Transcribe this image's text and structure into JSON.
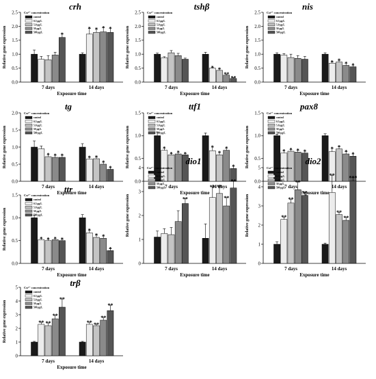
{
  "figure": {
    "legend_title": "Cu²⁺ concentration",
    "legend_labels": [
      "control",
      "0.5 μg/L",
      "5.0 μg/L",
      "50 μg/L",
      "500 μg/L"
    ],
    "series_colors": [
      "#1a1a1a",
      "#ececec",
      "#c4c4c4",
      "#8a8a8a",
      "#555555"
    ]
  },
  "chart_data": [
    {
      "type": "bar",
      "title": "crh",
      "categories": [
        "7 days",
        "14 days"
      ],
      "xlabel": "Exposure time",
      "ylabel": "Relative gene expression",
      "ylim": [
        0,
        2.5
      ],
      "yticks": [
        "0.0",
        "0.5",
        "1.0",
        "1.5",
        "2.0",
        "2.5"
      ],
      "series": [
        {
          "name": "control",
          "values": [
            1.0,
            1.0
          ],
          "errors": [
            0.15,
            0.05
          ],
          "sig": [
            "",
            ""
          ]
        },
        {
          "name": "0.5 μg/L",
          "values": [
            0.82,
            1.72
          ],
          "errors": [
            0.1,
            0.2
          ],
          "sig": [
            "",
            "*"
          ]
        },
        {
          "name": "5.0 μg/L",
          "values": [
            0.8,
            1.78
          ],
          "errors": [
            0.15,
            0.12
          ],
          "sig": [
            "",
            "*"
          ]
        },
        {
          "name": "50 μg/L",
          "values": [
            0.97,
            1.8
          ],
          "errors": [
            0.1,
            0.15
          ],
          "sig": [
            "",
            "*"
          ]
        },
        {
          "name": "500 μg/L",
          "values": [
            1.6,
            1.78
          ],
          "errors": [
            0.12,
            0.15
          ],
          "sig": [
            "*",
            "*"
          ]
        }
      ]
    },
    {
      "type": "bar",
      "title": "tshβ",
      "categories": [
        "7 days",
        "14 days"
      ],
      "xlabel": "Exposure time",
      "ylabel": "Relative gene expression",
      "ylim": [
        0,
        2.5
      ],
      "yticks": [
        "0.0",
        "0.5",
        "1.0",
        "1.5",
        "2.0",
        "2.5"
      ],
      "series": [
        {
          "name": "control",
          "values": [
            1.0,
            1.0
          ],
          "errors": [
            0.04,
            0.07
          ],
          "sig": [
            "",
            ""
          ]
        },
        {
          "name": "0.5 μg/L",
          "values": [
            0.87,
            0.5
          ],
          "errors": [
            0.04,
            0.03
          ],
          "sig": [
            "",
            "*"
          ]
        },
        {
          "name": "5.0 μg/L",
          "values": [
            1.05,
            0.42
          ],
          "errors": [
            0.08,
            0.05
          ],
          "sig": [
            "",
            "*"
          ]
        },
        {
          "name": "50 μg/L",
          "values": [
            0.95,
            0.25
          ],
          "errors": [
            0.08,
            0.04
          ],
          "sig": [
            "",
            "**"
          ]
        },
        {
          "name": "500 μg/L",
          "values": [
            0.82,
            0.13
          ],
          "errors": [
            0.04,
            0.03
          ],
          "sig": [
            "",
            "**"
          ]
        }
      ]
    },
    {
      "type": "bar",
      "title": "nis",
      "categories": [
        "7 days",
        "14 days"
      ],
      "xlabel": "Exposure time",
      "ylabel": "Relative gene expression",
      "ylim": [
        0,
        2.5
      ],
      "yticks": [
        "0.0",
        "0.5",
        "1.0",
        "1.5",
        "2.0",
        "2.5"
      ],
      "series": [
        {
          "name": "control",
          "values": [
            1.0,
            1.0
          ],
          "errors": [
            0.05,
            0.05
          ],
          "sig": [
            "",
            ""
          ]
        },
        {
          "name": "0.5 μg/L",
          "values": [
            0.97,
            0.68
          ],
          "errors": [
            0.05,
            0.04
          ],
          "sig": [
            "",
            "*"
          ]
        },
        {
          "name": "5.0 μg/L",
          "values": [
            0.88,
            0.72
          ],
          "errors": [
            0.12,
            0.06
          ],
          "sig": [
            "",
            "*"
          ]
        },
        {
          "name": "50 μg/L",
          "values": [
            0.85,
            0.6
          ],
          "errors": [
            0.1,
            0.08
          ],
          "sig": [
            "",
            "*"
          ]
        },
        {
          "name": "500 μg/L",
          "values": [
            0.82,
            0.55
          ],
          "errors": [
            0.1,
            0.06
          ],
          "sig": [
            "",
            "*"
          ]
        }
      ]
    },
    {
      "type": "bar",
      "title": "tg",
      "categories": [
        "7 days",
        "14 days"
      ],
      "xlabel": "Exposure time",
      "ylabel": "Relative gene expression",
      "ylim": [
        0,
        2.0
      ],
      "yticks": [
        "0.0",
        "0.5",
        "1.0",
        "1.5",
        "2.0"
      ],
      "series": [
        {
          "name": "control",
          "values": [
            1.0,
            1.0
          ],
          "errors": [
            0.18,
            0.1
          ],
          "sig": [
            "",
            ""
          ]
        },
        {
          "name": "0.5 μg/L",
          "values": [
            0.95,
            0.65
          ],
          "errors": [
            0.08,
            0.05
          ],
          "sig": [
            "",
            "*"
          ]
        },
        {
          "name": "5.0 μg/L",
          "values": [
            0.72,
            0.66
          ],
          "errors": [
            0.06,
            0.05
          ],
          "sig": [
            "*",
            "*"
          ]
        },
        {
          "name": "50 μg/L",
          "values": [
            0.7,
            0.5
          ],
          "errors": [
            0.06,
            0.06
          ],
          "sig": [
            "*",
            "*"
          ]
        },
        {
          "name": "500 μg/L",
          "values": [
            0.7,
            0.35
          ],
          "errors": [
            0.06,
            0.05
          ],
          "sig": [
            "*",
            "*"
          ]
        }
      ]
    },
    {
      "type": "bar",
      "title": "ttf1",
      "categories": [
        "7 days",
        "14 days"
      ],
      "xlabel": "Exposure time",
      "ylabel": "Relative gene expression",
      "ylim": [
        0,
        1.5
      ],
      "yticks": [
        "0.0",
        "0.5",
        "1.0",
        "1.5"
      ],
      "series": [
        {
          "name": "control",
          "values": [
            1.0,
            1.0
          ],
          "errors": [
            0.08,
            0.06
          ],
          "sig": [
            "",
            ""
          ]
        },
        {
          "name": "0.5 μg/L",
          "values": [
            0.68,
            0.67
          ],
          "errors": [
            0.05,
            0.08
          ],
          "sig": [
            "*",
            "*"
          ]
        },
        {
          "name": "5.0 μg/L",
          "values": [
            0.58,
            0.58
          ],
          "errors": [
            0.03,
            0.05
          ],
          "sig": [
            "*",
            "*"
          ]
        },
        {
          "name": "50 μg/L",
          "values": [
            0.6,
            0.68
          ],
          "errors": [
            0.04,
            0.05
          ],
          "sig": [
            "*",
            "*"
          ]
        },
        {
          "name": "500 μg/L",
          "values": [
            0.58,
            0.28
          ],
          "errors": [
            0.03,
            0.05
          ],
          "sig": [
            "*",
            "*"
          ]
        }
      ]
    },
    {
      "type": "bar",
      "title": "pax8",
      "categories": [
        "7 days",
        "14 days"
      ],
      "xlabel": "Exposure time",
      "ylabel": "Relative gene expression",
      "ylim": [
        0,
        1.5
      ],
      "yticks": [
        "0.0",
        "0.5",
        "1.0",
        "1.5"
      ],
      "series": [
        {
          "name": "control",
          "values": [
            1.0,
            1.0
          ],
          "errors": [
            0.03,
            0.04
          ],
          "sig": [
            "",
            ""
          ]
        },
        {
          "name": "0.5 μg/L",
          "values": [
            0.62,
            0.65
          ],
          "errors": [
            0.05,
            0.07
          ],
          "sig": [
            "*",
            "*"
          ]
        },
        {
          "name": "5.0 μg/L",
          "values": [
            0.66,
            0.71
          ],
          "errors": [
            0.04,
            0.05
          ],
          "sig": [
            "*",
            "*"
          ]
        },
        {
          "name": "50 μg/L",
          "values": [
            0.64,
            0.6
          ],
          "errors": [
            0.04,
            0.05
          ],
          "sig": [
            "*",
            "*"
          ]
        },
        {
          "name": "500 μg/L",
          "values": [
            0.62,
            0.55
          ],
          "errors": [
            0.04,
            0.05
          ],
          "sig": [
            "*",
            "*"
          ]
        }
      ]
    },
    {
      "type": "bar",
      "title": "ttr",
      "categories": [
        "7 days",
        "14 days"
      ],
      "xlabel": "Exposure time",
      "ylabel": "Relative gene expression",
      "ylim": [
        0,
        1.5
      ],
      "yticks": [
        "0.0",
        "0.5",
        "1.0",
        "1.5"
      ],
      "series": [
        {
          "name": "control",
          "values": [
            1.0,
            1.0
          ],
          "errors": [
            0.06,
            0.07
          ],
          "sig": [
            "",
            ""
          ]
        },
        {
          "name": "0.5 μg/L",
          "values": [
            0.52,
            0.67
          ],
          "errors": [
            0.03,
            0.06
          ],
          "sig": [
            "*",
            "*"
          ]
        },
        {
          "name": "5.0 μg/L",
          "values": [
            0.5,
            0.57
          ],
          "errors": [
            0.03,
            0.05
          ],
          "sig": [
            "*",
            "*"
          ]
        },
        {
          "name": "50 μg/L",
          "values": [
            0.52,
            0.55
          ],
          "errors": [
            0.03,
            0.05
          ],
          "sig": [
            "*",
            "*"
          ]
        },
        {
          "name": "500 μg/L",
          "values": [
            0.5,
            0.28
          ],
          "errors": [
            0.03,
            0.04
          ],
          "sig": [
            "*",
            "*"
          ]
        }
      ]
    },
    {
      "type": "bar",
      "title": "dio1",
      "categories": [
        "7 days",
        "14 days"
      ],
      "xlabel": "Exposure time",
      "ylabel": "Relative gene expression",
      "ylim": [
        0,
        4
      ],
      "yticks": [
        "0",
        "1",
        "2",
        "3",
        "4"
      ],
      "series": [
        {
          "name": "control",
          "values": [
            1.1,
            1.05
          ],
          "errors": [
            0.25,
            0.6
          ],
          "sig": [
            "",
            ""
          ]
        },
        {
          "name": "0.5 μg/L",
          "values": [
            1.25,
            2.75
          ],
          "errors": [
            0.2,
            0.45
          ],
          "sig": [
            "",
            "**"
          ]
        },
        {
          "name": "5.0 μg/L",
          "values": [
            1.2,
            2.92
          ],
          "errors": [
            0.3,
            0.3
          ],
          "sig": [
            "",
            "**"
          ]
        },
        {
          "name": "50 μg/L",
          "values": [
            1.75,
            2.4
          ],
          "errors": [
            0.45,
            0.35
          ],
          "sig": [
            "",
            "**"
          ]
        },
        {
          "name": "500 μg/L",
          "values": [
            2.5,
            3.15
          ],
          "errors": [
            0.2,
            0.3
          ],
          "sig": [
            "**",
            "**"
          ]
        }
      ]
    },
    {
      "type": "bar",
      "title": "dio2",
      "categories": [
        "7 days",
        "14 days"
      ],
      "xlabel": "Exposure time",
      "ylabel": "Relative gene expression",
      "ylim": [
        0,
        5
      ],
      "yticks": [
        "0",
        "1",
        "2",
        "3",
        "4",
        "5"
      ],
      "series": [
        {
          "name": "control",
          "values": [
            1.0,
            1.0
          ],
          "errors": [
            0.12,
            0.06
          ],
          "sig": [
            "",
            ""
          ]
        },
        {
          "name": "0.5 μg/L",
          "values": [
            2.3,
            3.7
          ],
          "errors": [
            0.12,
            0.9
          ],
          "sig": [
            "**",
            "**"
          ]
        },
        {
          "name": "5.0 μg/L",
          "values": [
            3.15,
            2.55
          ],
          "errors": [
            0.2,
            0.12
          ],
          "sig": [
            "**",
            "**"
          ]
        },
        {
          "name": "50 μg/L",
          "values": [
            3.85,
            2.25
          ],
          "errors": [
            0.4,
            0.15
          ],
          "sig": [
            "**",
            "**"
          ]
        },
        {
          "name": "500 μg/L",
          "values": [
            3.55,
            4.3
          ],
          "errors": [
            0.15,
            0.18
          ],
          "sig": [
            "**",
            "***"
          ]
        }
      ]
    },
    {
      "type": "bar",
      "title": "trβ",
      "categories": [
        "7 days",
        "14 days"
      ],
      "xlabel": "Exposure time",
      "ylabel": "Relative gene expression",
      "ylim": [
        0,
        5
      ],
      "yticks": [
        "0",
        "1",
        "2",
        "3",
        "4",
        "5"
      ],
      "series": [
        {
          "name": "control",
          "values": [
            1.0,
            1.0
          ],
          "errors": [
            0.05,
            0.05
          ],
          "sig": [
            "",
            ""
          ]
        },
        {
          "name": "0.5 μg/L",
          "values": [
            2.3,
            2.3
          ],
          "errors": [
            0.15,
            0.15
          ],
          "sig": [
            "**",
            "**"
          ]
        },
        {
          "name": "5.0 μg/L",
          "values": [
            2.2,
            2.2
          ],
          "errors": [
            0.2,
            0.1
          ],
          "sig": [
            "**",
            "**"
          ]
        },
        {
          "name": "50 μg/L",
          "values": [
            2.7,
            2.6
          ],
          "errors": [
            0.25,
            0.2
          ],
          "sig": [
            "**",
            "**"
          ]
        },
        {
          "name": "500 μg/L",
          "values": [
            3.55,
            3.3
          ],
          "errors": [
            0.6,
            0.4
          ],
          "sig": [
            "**",
            "**"
          ]
        }
      ]
    }
  ]
}
